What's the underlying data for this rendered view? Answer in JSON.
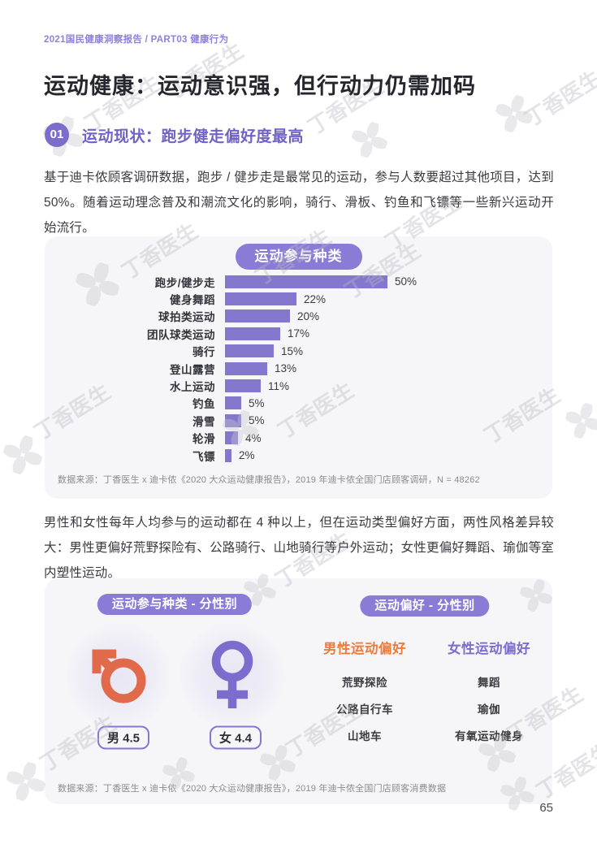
{
  "page": {
    "breadcrumb": "2021国民健康洞察报告 / PART03 健康行为",
    "title": "运动健康：运动意识强，但行动力仍需加码",
    "page_number": "65",
    "watermark_text": "丁香医生"
  },
  "section": {
    "number": "01",
    "title": "运动现状：跑步健走偏好度最高"
  },
  "paragraphs": {
    "p1": "基于迪卡侬顾客调研数据，跑步 / 健步走是最常见的运动，参与人数要超过其他项目，达到50%。随着运动理念普及和潮流文化的影响，骑行、滑板、钓鱼和飞镖等一些新兴运动开始流行。",
    "p2": "男性和女性每年人均参与的运动都在 4 种以上，但在运动类型偏好方面，两性风格差异较大：男性更偏好荒野探险有、公路骑行、山地骑行等户外运动；女性更偏好舞蹈、瑜伽等室内塑性运动。"
  },
  "chart_data": {
    "type": "bar",
    "orientation": "horizontal",
    "title": "运动参与种类",
    "categories": [
      "跑步/健步走",
      "健身舞蹈",
      "球拍类运动",
      "团队球类运动",
      "骑行",
      "登山露营",
      "水上运动",
      "钓鱼",
      "滑雪",
      "轮滑",
      "飞镖"
    ],
    "values": [
      50,
      22,
      20,
      17,
      15,
      13,
      11,
      5,
      5,
      4,
      2
    ],
    "unit": "%",
    "xlim": [
      0,
      50
    ],
    "bar_color": "#8478CE",
    "source": "数据来源：丁香医生 x 迪卡侬《2020 大众运动健康报告》，2019 年迪卡侬全国门店顾客调研，N = 48262"
  },
  "gender_participation": {
    "badge": "运动参与种类 - 分性别",
    "male": {
      "symbol": "male-sign",
      "color": "#E06A4A",
      "label": "男 4.5"
    },
    "female": {
      "symbol": "female-sign",
      "color": "#7B6CCE",
      "label": "女 4.4"
    }
  },
  "gender_preference": {
    "badge": "运动偏好 - 分性别",
    "male": {
      "header": "男性运动偏好",
      "color": "#ED7C3C",
      "items": [
        "荒野探险",
        "公路自行车",
        "山地车"
      ]
    },
    "female": {
      "header": "女性运动偏好",
      "color": "#7B6CCE",
      "items": [
        "舞蹈",
        "瑜伽",
        "有氧运动健身"
      ]
    },
    "source": "数据来源：丁香医生 x 迪卡侬《2020 大众运动健康报告》，2019 年迪卡侬全国门店顾客消费数据"
  }
}
